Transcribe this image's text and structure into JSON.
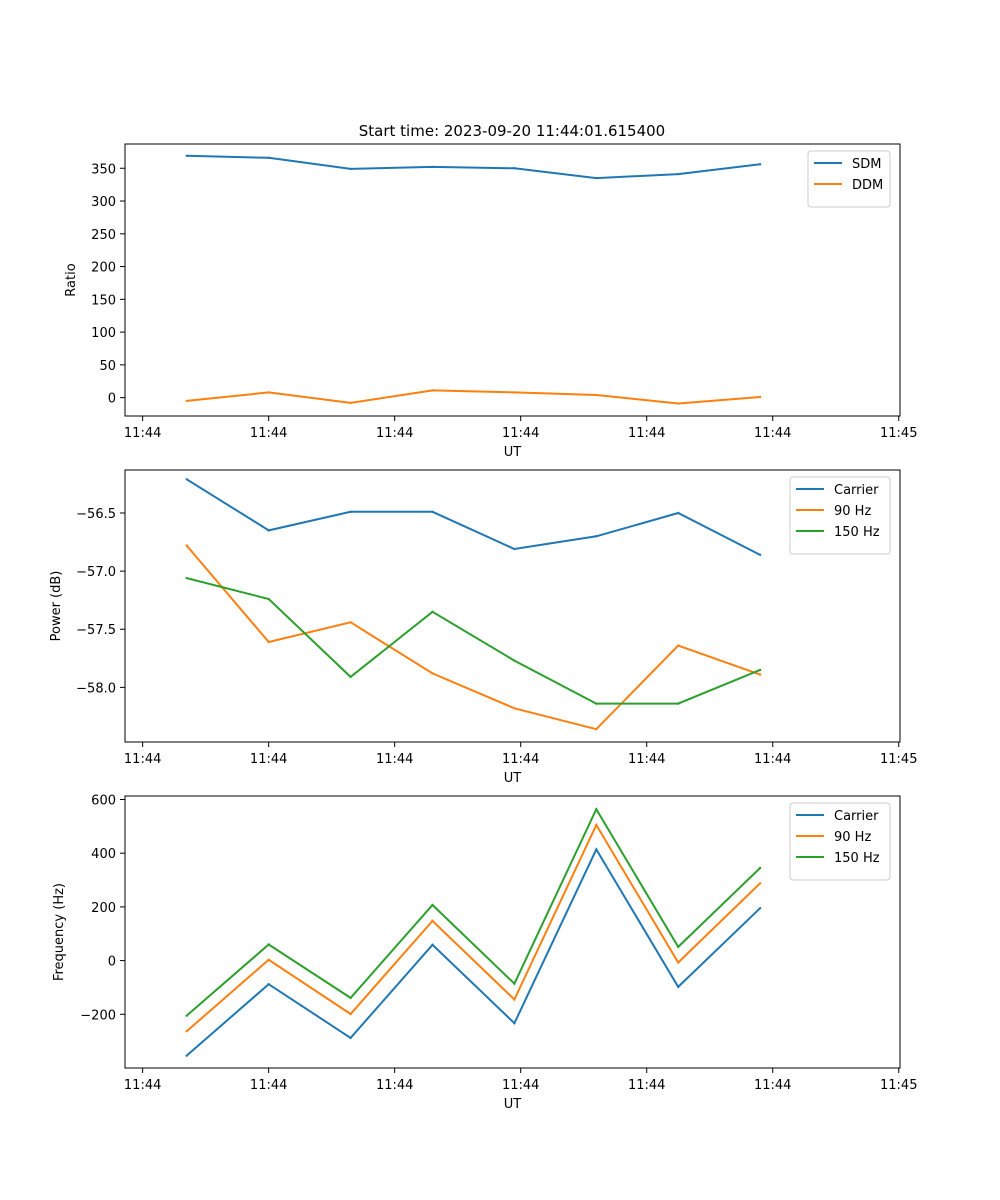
{
  "figure_title": "Start time: 2023-09-20 11:44:01.615400",
  "colors": {
    "blue": "#1f77b4",
    "orange": "#ff7f0e",
    "green": "#2ca02c",
    "axis": "#000000",
    "legend_border": "#cccccc"
  },
  "chart_data": [
    {
      "type": "line",
      "title": "Start time: 2023-09-20 11:44:01.615400",
      "xlabel": "UT",
      "ylabel": "Ratio",
      "xlim": [
        -0.39,
        5.76
      ],
      "ylim": [
        -28,
        387
      ],
      "x": [
        0.1,
        0.75,
        1.4,
        2.05,
        2.7,
        3.35,
        4.0,
        4.65
      ],
      "xticks": [
        -0.25,
        0.75,
        1.75,
        2.75,
        3.75,
        4.75,
        5.75
      ],
      "xtick_labels": [
        "11:44",
        "11:44",
        "11:44",
        "11:44",
        "11:44",
        "11:44",
        "11:45"
      ],
      "yticks": [
        0,
        50,
        100,
        150,
        200,
        250,
        300,
        350
      ],
      "ytick_labels": [
        "0",
        "50",
        "100",
        "150",
        "200",
        "250",
        "300",
        "350"
      ],
      "legend": "top-right",
      "series": [
        {
          "name": "SDM",
          "color": "#1f77b4",
          "values": [
            369,
            366,
            349,
            352,
            350,
            335,
            341,
            356
          ]
        },
        {
          "name": "DDM",
          "color": "#ff7f0e",
          "values": [
            -5,
            8,
            -8,
            11,
            8,
            4,
            -9,
            1
          ]
        }
      ]
    },
    {
      "type": "line",
      "title": "",
      "xlabel": "UT",
      "ylabel": "Power (dB)",
      "xlim": [
        -0.39,
        5.76
      ],
      "ylim": [
        -58.47,
        -56.13
      ],
      "x": [
        0.1,
        0.75,
        1.4,
        2.05,
        2.7,
        3.35,
        4.0,
        4.65
      ],
      "xticks": [
        -0.25,
        0.75,
        1.75,
        2.75,
        3.75,
        4.75,
        5.75
      ],
      "xtick_labels": [
        "11:44",
        "11:44",
        "11:44",
        "11:44",
        "11:44",
        "11:44",
        "11:45"
      ],
      "yticks": [
        -58.0,
        -57.5,
        -57.0,
        -56.5
      ],
      "ytick_labels": [
        "−58.0",
        "−57.5",
        "−57.0",
        "−56.5"
      ],
      "legend": "top-right",
      "series": [
        {
          "name": "Carrier",
          "color": "#1f77b4",
          "values": [
            -56.21,
            -56.65,
            -56.49,
            -56.49,
            -56.81,
            -56.7,
            -56.5,
            -56.86
          ]
        },
        {
          "name": "90 Hz",
          "color": "#ff7f0e",
          "values": [
            -56.78,
            -57.61,
            -57.44,
            -57.88,
            -58.18,
            -58.36,
            -57.64,
            -57.89
          ]
        },
        {
          "name": "150 Hz",
          "color": "#2ca02c",
          "values": [
            -57.06,
            -57.24,
            -57.91,
            -57.35,
            -57.77,
            -58.14,
            -58.14,
            -57.85
          ]
        }
      ]
    },
    {
      "type": "line",
      "title": "",
      "xlabel": "UT",
      "ylabel": "Frequency (Hz)",
      "xlim": [
        -0.39,
        5.76
      ],
      "ylim": [
        -400,
        613
      ],
      "x": [
        0.1,
        0.75,
        1.4,
        2.05,
        2.7,
        3.35,
        4.0,
        4.65
      ],
      "xticks": [
        -0.25,
        0.75,
        1.75,
        2.75,
        3.75,
        4.75,
        5.75
      ],
      "xtick_labels": [
        "11:44",
        "11:44",
        "11:44",
        "11:44",
        "11:44",
        "11:44",
        "11:45"
      ],
      "yticks": [
        -200,
        0,
        200,
        400,
        600
      ],
      "ytick_labels": [
        "−200",
        "0",
        "200",
        "400",
        "600"
      ],
      "legend": "top-right",
      "series": [
        {
          "name": "Carrier",
          "color": "#1f77b4",
          "values": [
            -354,
            -88,
            -288,
            59,
            -233,
            414,
            -98,
            195
          ]
        },
        {
          "name": "90 Hz",
          "color": "#ff7f0e",
          "values": [
            -263,
            3,
            -199,
            148,
            -145,
            505,
            -7,
            288
          ]
        },
        {
          "name": "150 Hz",
          "color": "#2ca02c",
          "values": [
            -205,
            60,
            -139,
            207,
            -86,
            564,
            51,
            345
          ]
        }
      ]
    }
  ]
}
